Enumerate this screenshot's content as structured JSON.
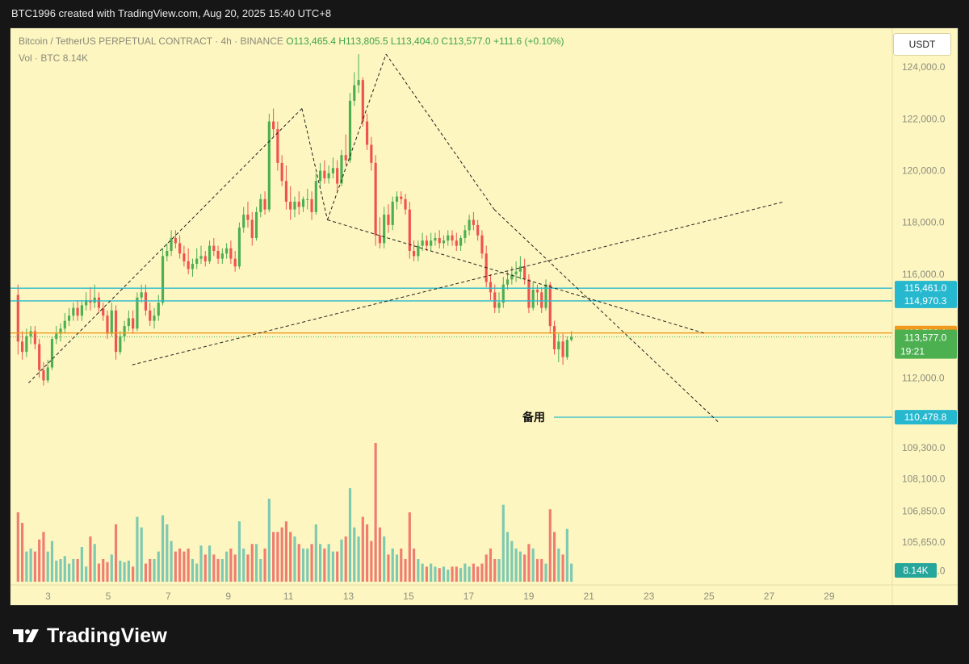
{
  "header": {
    "attribution": "BTC1996 created with TradingView.com, Aug 20, 2025 15:40 UTC+8"
  },
  "legend": {
    "symbol": "Bitcoin / TetherUS PERPETUAL CONTRACT · 4h · BINANCE",
    "open": "O113,465.4",
    "high": "H113,805.5",
    "low": "L113,404.0",
    "close": "C113,577.0",
    "change": "+111.6 (+0.10%)",
    "vol_label": "Vol · BTC",
    "vol_value": "8.14K"
  },
  "quote_currency": "USDT",
  "footer": {
    "brand": "TradingView"
  },
  "colors": {
    "up": "#4caf50",
    "down": "#ef5350",
    "vol_up": "#7ec9b1",
    "vol_down": "#ef7d72",
    "cyan_line": "#26b8cf",
    "orange_line": "#f09a20",
    "bg": "#fdf6c0"
  },
  "chart_data": {
    "type": "candlestick",
    "x_tick_labels": [
      "3",
      "5",
      "7",
      "9",
      "11",
      "13",
      "15",
      "17",
      "19",
      "21",
      "23",
      "25",
      "27",
      "29"
    ],
    "x_tick_days": [
      3,
      5,
      7,
      9,
      11,
      13,
      15,
      17,
      19,
      21,
      23,
      25,
      27,
      29
    ],
    "y_tick_labels": [
      "124,000.0",
      "122,000.0",
      "120,000.0",
      "118,000.0",
      "116,000.0",
      "112,000.0",
      "109,300.0",
      "108,100.0",
      "106,850.0",
      "105,650.0",
      "104,550.0"
    ],
    "y_tick_values": [
      124000,
      122000,
      120000,
      118000,
      116000,
      112000,
      109300,
      108100,
      106850,
      105650,
      104550
    ],
    "ylim": [
      104000,
      125500
    ],
    "xlim_days": [
      1.75,
      31.1
    ],
    "horizontal_levels": [
      {
        "price": 115461.0,
        "label": "115,461.0",
        "color": "#26b8cf"
      },
      {
        "price": 114970.3,
        "label": "114,970.3",
        "color": "#26b8cf"
      },
      {
        "price": 113730.1,
        "label": "113,730.1",
        "color": "#f09a20"
      },
      {
        "price": 110478.8,
        "label": "110,478.8",
        "color": "#26b8cf",
        "text": "备用"
      }
    ],
    "last_price": {
      "price": 113577.0,
      "label": "113,577.0",
      "countdown": "19:21"
    },
    "volume_last": "8.14K",
    "trendlines": [
      {
        "from": [
          2.35,
          111800
        ],
        "to": [
          11.45,
          122400
        ]
      },
      {
        "from": [
          11.45,
          122400
        ],
        "to": [
          12.3,
          118100
        ]
      },
      {
        "from": [
          12.3,
          118100
        ],
        "to": [
          14.25,
          124500
        ]
      },
      {
        "from": [
          14.25,
          124500
        ],
        "to": [
          17.85,
          118500
        ]
      },
      {
        "from": [
          17.85,
          118500
        ],
        "to": [
          25.3,
          110300
        ]
      },
      {
        "from": [
          12.3,
          118100
        ],
        "to": [
          24.9,
          113700
        ]
      },
      {
        "from": [
          5.8,
          112500
        ],
        "to": [
          27.5,
          118800
        ]
      }
    ],
    "candles": [
      {
        "o": 115200,
        "h": 115600,
        "c": 113400,
        "l": 112900,
        "v": 4.6
      },
      {
        "o": 113400,
        "h": 113800,
        "c": 113000,
        "l": 112700,
        "v": 3.9
      },
      {
        "o": 113000,
        "h": 113900,
        "c": 113600,
        "l": 112800,
        "v": 2.0
      },
      {
        "o": 113600,
        "h": 114000,
        "c": 113800,
        "l": 113300,
        "v": 2.2
      },
      {
        "o": 113800,
        "h": 114000,
        "c": 113300,
        "l": 113100,
        "v": 2.0
      },
      {
        "o": 113300,
        "h": 113500,
        "c": 112300,
        "l": 112000,
        "v": 2.8
      },
      {
        "o": 112300,
        "h": 112600,
        "c": 111900,
        "l": 111700,
        "v": 3.3
      },
      {
        "o": 111900,
        "h": 112700,
        "c": 112400,
        "l": 111800,
        "v": 2.0
      },
      {
        "o": 112400,
        "h": 113600,
        "c": 113500,
        "l": 112300,
        "v": 2.7
      },
      {
        "o": 113500,
        "h": 114000,
        "c": 113700,
        "l": 113300,
        "v": 1.4
      },
      {
        "o": 113700,
        "h": 114100,
        "c": 113900,
        "l": 113400,
        "v": 1.5
      },
      {
        "o": 113900,
        "h": 114500,
        "c": 114200,
        "l": 113700,
        "v": 1.7
      },
      {
        "o": 114200,
        "h": 114700,
        "c": 114400,
        "l": 114000,
        "v": 1.2
      },
      {
        "o": 114400,
        "h": 114900,
        "c": 114700,
        "l": 114200,
        "v": 1.5
      },
      {
        "o": 114700,
        "h": 115000,
        "c": 114400,
        "l": 114200,
        "v": 1.5
      },
      {
        "o": 114400,
        "h": 115000,
        "c": 114800,
        "l": 114200,
        "v": 2.3
      },
      {
        "o": 114800,
        "h": 115300,
        "c": 115000,
        "l": 114600,
        "v": 1.0
      },
      {
        "o": 115000,
        "h": 115500,
        "c": 114900,
        "l": 114600,
        "v": 3.0
      },
      {
        "o": 114900,
        "h": 115600,
        "c": 115100,
        "l": 114700,
        "v": 2.5
      },
      {
        "o": 115100,
        "h": 115300,
        "c": 114700,
        "l": 114500,
        "v": 1.2
      },
      {
        "o": 114700,
        "h": 114900,
        "c": 114400,
        "l": 114200,
        "v": 1.5
      },
      {
        "o": 114400,
        "h": 114600,
        "c": 113700,
        "l": 113500,
        "v": 1.3
      },
      {
        "o": 113700,
        "h": 114900,
        "c": 114600,
        "l": 113600,
        "v": 1.8
      },
      {
        "o": 114600,
        "h": 114800,
        "c": 113000,
        "l": 112700,
        "v": 3.8
      },
      {
        "o": 113000,
        "h": 113800,
        "c": 113600,
        "l": 112900,
        "v": 1.4
      },
      {
        "o": 113600,
        "h": 114200,
        "c": 114000,
        "l": 113400,
        "v": 1.3
      },
      {
        "o": 114000,
        "h": 114600,
        "c": 114300,
        "l": 113800,
        "v": 1.4
      },
      {
        "o": 114300,
        "h": 114600,
        "c": 113900,
        "l": 113700,
        "v": 1.0
      },
      {
        "o": 113900,
        "h": 115300,
        "c": 115100,
        "l": 113800,
        "v": 4.3
      },
      {
        "o": 115100,
        "h": 115600,
        "c": 115300,
        "l": 114900,
        "v": 3.6
      },
      {
        "o": 115300,
        "h": 115600,
        "c": 114600,
        "l": 114400,
        "v": 1.2
      },
      {
        "o": 114600,
        "h": 114900,
        "c": 114200,
        "l": 114000,
        "v": 1.5
      },
      {
        "o": 114200,
        "h": 114700,
        "c": 114400,
        "l": 113900,
        "v": 1.5
      },
      {
        "o": 114400,
        "h": 115200,
        "c": 114900,
        "l": 114200,
        "v": 2.0
      },
      {
        "o": 114900,
        "h": 117000,
        "c": 116700,
        "l": 114800,
        "v": 4.4
      },
      {
        "o": 116700,
        "h": 117200,
        "c": 116900,
        "l": 116500,
        "v": 3.8
      },
      {
        "o": 116900,
        "h": 117700,
        "c": 117400,
        "l": 116700,
        "v": 2.7
      },
      {
        "o": 117400,
        "h": 117700,
        "c": 117200,
        "l": 117000,
        "v": 2.0
      },
      {
        "o": 117200,
        "h": 117500,
        "c": 116800,
        "l": 116600,
        "v": 2.2
      },
      {
        "o": 116800,
        "h": 117100,
        "c": 116500,
        "l": 116300,
        "v": 2.0
      },
      {
        "o": 116500,
        "h": 117000,
        "c": 116200,
        "l": 116000,
        "v": 2.2
      },
      {
        "o": 116200,
        "h": 116600,
        "c": 116400,
        "l": 115900,
        "v": 1.5
      },
      {
        "o": 116400,
        "h": 117000,
        "c": 116600,
        "l": 116200,
        "v": 1.2
      },
      {
        "o": 116600,
        "h": 117100,
        "c": 116700,
        "l": 116400,
        "v": 2.4
      },
      {
        "o": 116700,
        "h": 116900,
        "c": 116500,
        "l": 116300,
        "v": 1.8
      },
      {
        "o": 116500,
        "h": 117300,
        "c": 117100,
        "l": 116400,
        "v": 2.4
      },
      {
        "o": 117100,
        "h": 117400,
        "c": 116900,
        "l": 116700,
        "v": 1.8
      },
      {
        "o": 116900,
        "h": 117100,
        "c": 116600,
        "l": 116400,
        "v": 1.5
      },
      {
        "o": 116600,
        "h": 117000,
        "c": 116800,
        "l": 116400,
        "v": 1.5
      },
      {
        "o": 116800,
        "h": 117200,
        "c": 117000,
        "l": 116600,
        "v": 2.0
      },
      {
        "o": 117000,
        "h": 117300,
        "c": 116600,
        "l": 116400,
        "v": 2.2
      },
      {
        "o": 116600,
        "h": 116900,
        "c": 116300,
        "l": 116100,
        "v": 1.8
      },
      {
        "o": 116300,
        "h": 118000,
        "c": 117800,
        "l": 116200,
        "v": 4.0
      },
      {
        "o": 117800,
        "h": 118600,
        "c": 118300,
        "l": 117600,
        "v": 2.2
      },
      {
        "o": 118300,
        "h": 118800,
        "c": 118100,
        "l": 117800,
        "v": 1.8
      },
      {
        "o": 118100,
        "h": 118400,
        "c": 117400,
        "l": 117100,
        "v": 2.5
      },
      {
        "o": 117400,
        "h": 118600,
        "c": 118400,
        "l": 117300,
        "v": 2.5
      },
      {
        "o": 118400,
        "h": 119100,
        "c": 118900,
        "l": 118200,
        "v": 1.5
      },
      {
        "o": 118900,
        "h": 119200,
        "c": 118500,
        "l": 118300,
        "v": 2.2
      },
      {
        "o": 118500,
        "h": 122200,
        "c": 121900,
        "l": 118400,
        "v": 5.5
      },
      {
        "o": 121900,
        "h": 122400,
        "c": 121600,
        "l": 121300,
        "v": 3.3
      },
      {
        "o": 121600,
        "h": 121900,
        "c": 120300,
        "l": 120000,
        "v": 3.3
      },
      {
        "o": 120300,
        "h": 120600,
        "c": 119600,
        "l": 119400,
        "v": 3.6
      },
      {
        "o": 119600,
        "h": 120200,
        "c": 118800,
        "l": 118500,
        "v": 4.0
      },
      {
        "o": 118800,
        "h": 119400,
        "c": 118500,
        "l": 118100,
        "v": 3.3
      },
      {
        "o": 118500,
        "h": 119000,
        "c": 118800,
        "l": 118200,
        "v": 3.0
      },
      {
        "o": 118800,
        "h": 119200,
        "c": 118600,
        "l": 118300,
        "v": 2.5
      },
      {
        "o": 118600,
        "h": 119000,
        "c": 118900,
        "l": 118400,
        "v": 2.2
      },
      {
        "o": 118900,
        "h": 119300,
        "c": 118900,
        "l": 118500,
        "v": 2.2
      },
      {
        "o": 118900,
        "h": 119200,
        "c": 118400,
        "l": 118100,
        "v": 2.5
      },
      {
        "o": 118400,
        "h": 119900,
        "c": 119600,
        "l": 118300,
        "v": 3.8
      },
      {
        "o": 119600,
        "h": 120300,
        "c": 120000,
        "l": 119400,
        "v": 2.5
      },
      {
        "o": 120000,
        "h": 120400,
        "c": 119700,
        "l": 119500,
        "v": 2.2
      },
      {
        "o": 119700,
        "h": 120200,
        "c": 119900,
        "l": 119500,
        "v": 2.5
      },
      {
        "o": 119900,
        "h": 120500,
        "c": 120100,
        "l": 119700,
        "v": 2.0
      },
      {
        "o": 120100,
        "h": 120400,
        "c": 119500,
        "l": 119200,
        "v": 2.0
      },
      {
        "o": 119500,
        "h": 120800,
        "c": 120600,
        "l": 119400,
        "v": 2.8
      },
      {
        "o": 120600,
        "h": 121400,
        "c": 120400,
        "l": 120200,
        "v": 3.0
      },
      {
        "o": 120400,
        "h": 123000,
        "c": 122700,
        "l": 120300,
        "v": 6.2
      },
      {
        "o": 122700,
        "h": 123800,
        "c": 123300,
        "l": 122500,
        "v": 3.6
      },
      {
        "o": 123300,
        "h": 124500,
        "c": 123500,
        "l": 123000,
        "v": 3.0
      },
      {
        "o": 123500,
        "h": 123600,
        "c": 121900,
        "l": 121700,
        "v": 4.3
      },
      {
        "o": 121900,
        "h": 122200,
        "c": 121000,
        "l": 120800,
        "v": 3.8
      },
      {
        "o": 121000,
        "h": 121300,
        "c": 120300,
        "l": 120000,
        "v": 2.7
      },
      {
        "o": 120300,
        "h": 120600,
        "c": 117500,
        "l": 117100,
        "v": 9.2
      },
      {
        "o": 117500,
        "h": 118200,
        "c": 117200,
        "l": 117000,
        "v": 3.6
      },
      {
        "o": 117200,
        "h": 118600,
        "c": 118300,
        "l": 117000,
        "v": 3.0
      },
      {
        "o": 118300,
        "h": 118700,
        "c": 117900,
        "l": 117600,
        "v": 1.8
      },
      {
        "o": 117900,
        "h": 119000,
        "c": 118800,
        "l": 117700,
        "v": 2.2
      },
      {
        "o": 118800,
        "h": 119200,
        "c": 119000,
        "l": 118500,
        "v": 1.8
      },
      {
        "o": 119000,
        "h": 119200,
        "c": 118900,
        "l": 118700,
        "v": 2.2
      },
      {
        "o": 118900,
        "h": 119100,
        "c": 118500,
        "l": 118300,
        "v": 1.5
      },
      {
        "o": 118500,
        "h": 118800,
        "c": 116900,
        "l": 116600,
        "v": 4.6
      },
      {
        "o": 116900,
        "h": 117300,
        "c": 116700,
        "l": 116500,
        "v": 2.2
      },
      {
        "o": 116700,
        "h": 117300,
        "c": 117100,
        "l": 116500,
        "v": 1.5
      },
      {
        "o": 117100,
        "h": 117600,
        "c": 117300,
        "l": 116900,
        "v": 1.2
      },
      {
        "o": 117300,
        "h": 117500,
        "c": 117100,
        "l": 116900,
        "v": 1.0
      },
      {
        "o": 117100,
        "h": 117600,
        "c": 117300,
        "l": 116900,
        "v": 1.2
      },
      {
        "o": 117300,
        "h": 117600,
        "c": 117400,
        "l": 117100,
        "v": 1.0
      },
      {
        "o": 117400,
        "h": 117700,
        "c": 117200,
        "l": 117000,
        "v": 0.9
      },
      {
        "o": 117200,
        "h": 117500,
        "c": 117300,
        "l": 117000,
        "v": 1.0
      },
      {
        "o": 117300,
        "h": 117700,
        "c": 117500,
        "l": 117100,
        "v": 0.8
      },
      {
        "o": 117500,
        "h": 117700,
        "c": 117300,
        "l": 117100,
        "v": 1.0
      },
      {
        "o": 117300,
        "h": 117600,
        "c": 117100,
        "l": 116900,
        "v": 1.0
      },
      {
        "o": 117100,
        "h": 117500,
        "c": 117400,
        "l": 116900,
        "v": 0.9
      },
      {
        "o": 117400,
        "h": 117900,
        "c": 117700,
        "l": 117200,
        "v": 1.2
      },
      {
        "o": 117700,
        "h": 118300,
        "c": 118100,
        "l": 117500,
        "v": 1.0
      },
      {
        "o": 118100,
        "h": 118400,
        "c": 117900,
        "l": 117700,
        "v": 1.2
      },
      {
        "o": 117900,
        "h": 118100,
        "c": 117500,
        "l": 117300,
        "v": 1.0
      },
      {
        "o": 117500,
        "h": 117700,
        "c": 116800,
        "l": 116600,
        "v": 1.2
      },
      {
        "o": 116800,
        "h": 117100,
        "c": 115700,
        "l": 115500,
        "v": 1.8
      },
      {
        "o": 115700,
        "h": 116000,
        "c": 115300,
        "l": 115000,
        "v": 2.2
      },
      {
        "o": 115300,
        "h": 115600,
        "c": 114700,
        "l": 114500,
        "v": 1.5
      },
      {
        "o": 114700,
        "h": 115300,
        "c": 114900,
        "l": 114500,
        "v": 1.5
      },
      {
        "o": 114900,
        "h": 115900,
        "c": 115600,
        "l": 114700,
        "v": 5.1
      },
      {
        "o": 115600,
        "h": 116100,
        "c": 115800,
        "l": 115400,
        "v": 3.3
      },
      {
        "o": 115800,
        "h": 116300,
        "c": 116000,
        "l": 115600,
        "v": 2.7
      },
      {
        "o": 116000,
        "h": 116500,
        "c": 116100,
        "l": 115700,
        "v": 2.2
      },
      {
        "o": 116100,
        "h": 116700,
        "c": 116300,
        "l": 115800,
        "v": 2.0
      },
      {
        "o": 116300,
        "h": 116600,
        "c": 115800,
        "l": 115600,
        "v": 1.8
      },
      {
        "o": 115800,
        "h": 116000,
        "c": 114700,
        "l": 114500,
        "v": 2.5
      },
      {
        "o": 114700,
        "h": 115700,
        "c": 115400,
        "l": 114600,
        "v": 2.2
      },
      {
        "o": 115400,
        "h": 115600,
        "c": 115300,
        "l": 114800,
        "v": 1.5
      },
      {
        "o": 115300,
        "h": 115500,
        "c": 114700,
        "l": 114500,
        "v": 1.5
      },
      {
        "o": 114700,
        "h": 115800,
        "c": 115600,
        "l": 114600,
        "v": 1.2
      },
      {
        "o": 115600,
        "h": 115700,
        "c": 114000,
        "l": 113700,
        "v": 4.8
      },
      {
        "o": 114000,
        "h": 114200,
        "c": 113100,
        "l": 112900,
        "v": 3.3
      },
      {
        "o": 113100,
        "h": 113700,
        "c": 113400,
        "l": 112600,
        "v": 2.2
      },
      {
        "o": 113400,
        "h": 113700,
        "c": 112800,
        "l": 112500,
        "v": 1.8
      },
      {
        "o": 112800,
        "h": 113600,
        "c": 113465,
        "l": 112700,
        "v": 3.5
      },
      {
        "o": 113465,
        "h": 113805,
        "c": 113577,
        "l": 113404,
        "v": 1.2
      }
    ]
  }
}
